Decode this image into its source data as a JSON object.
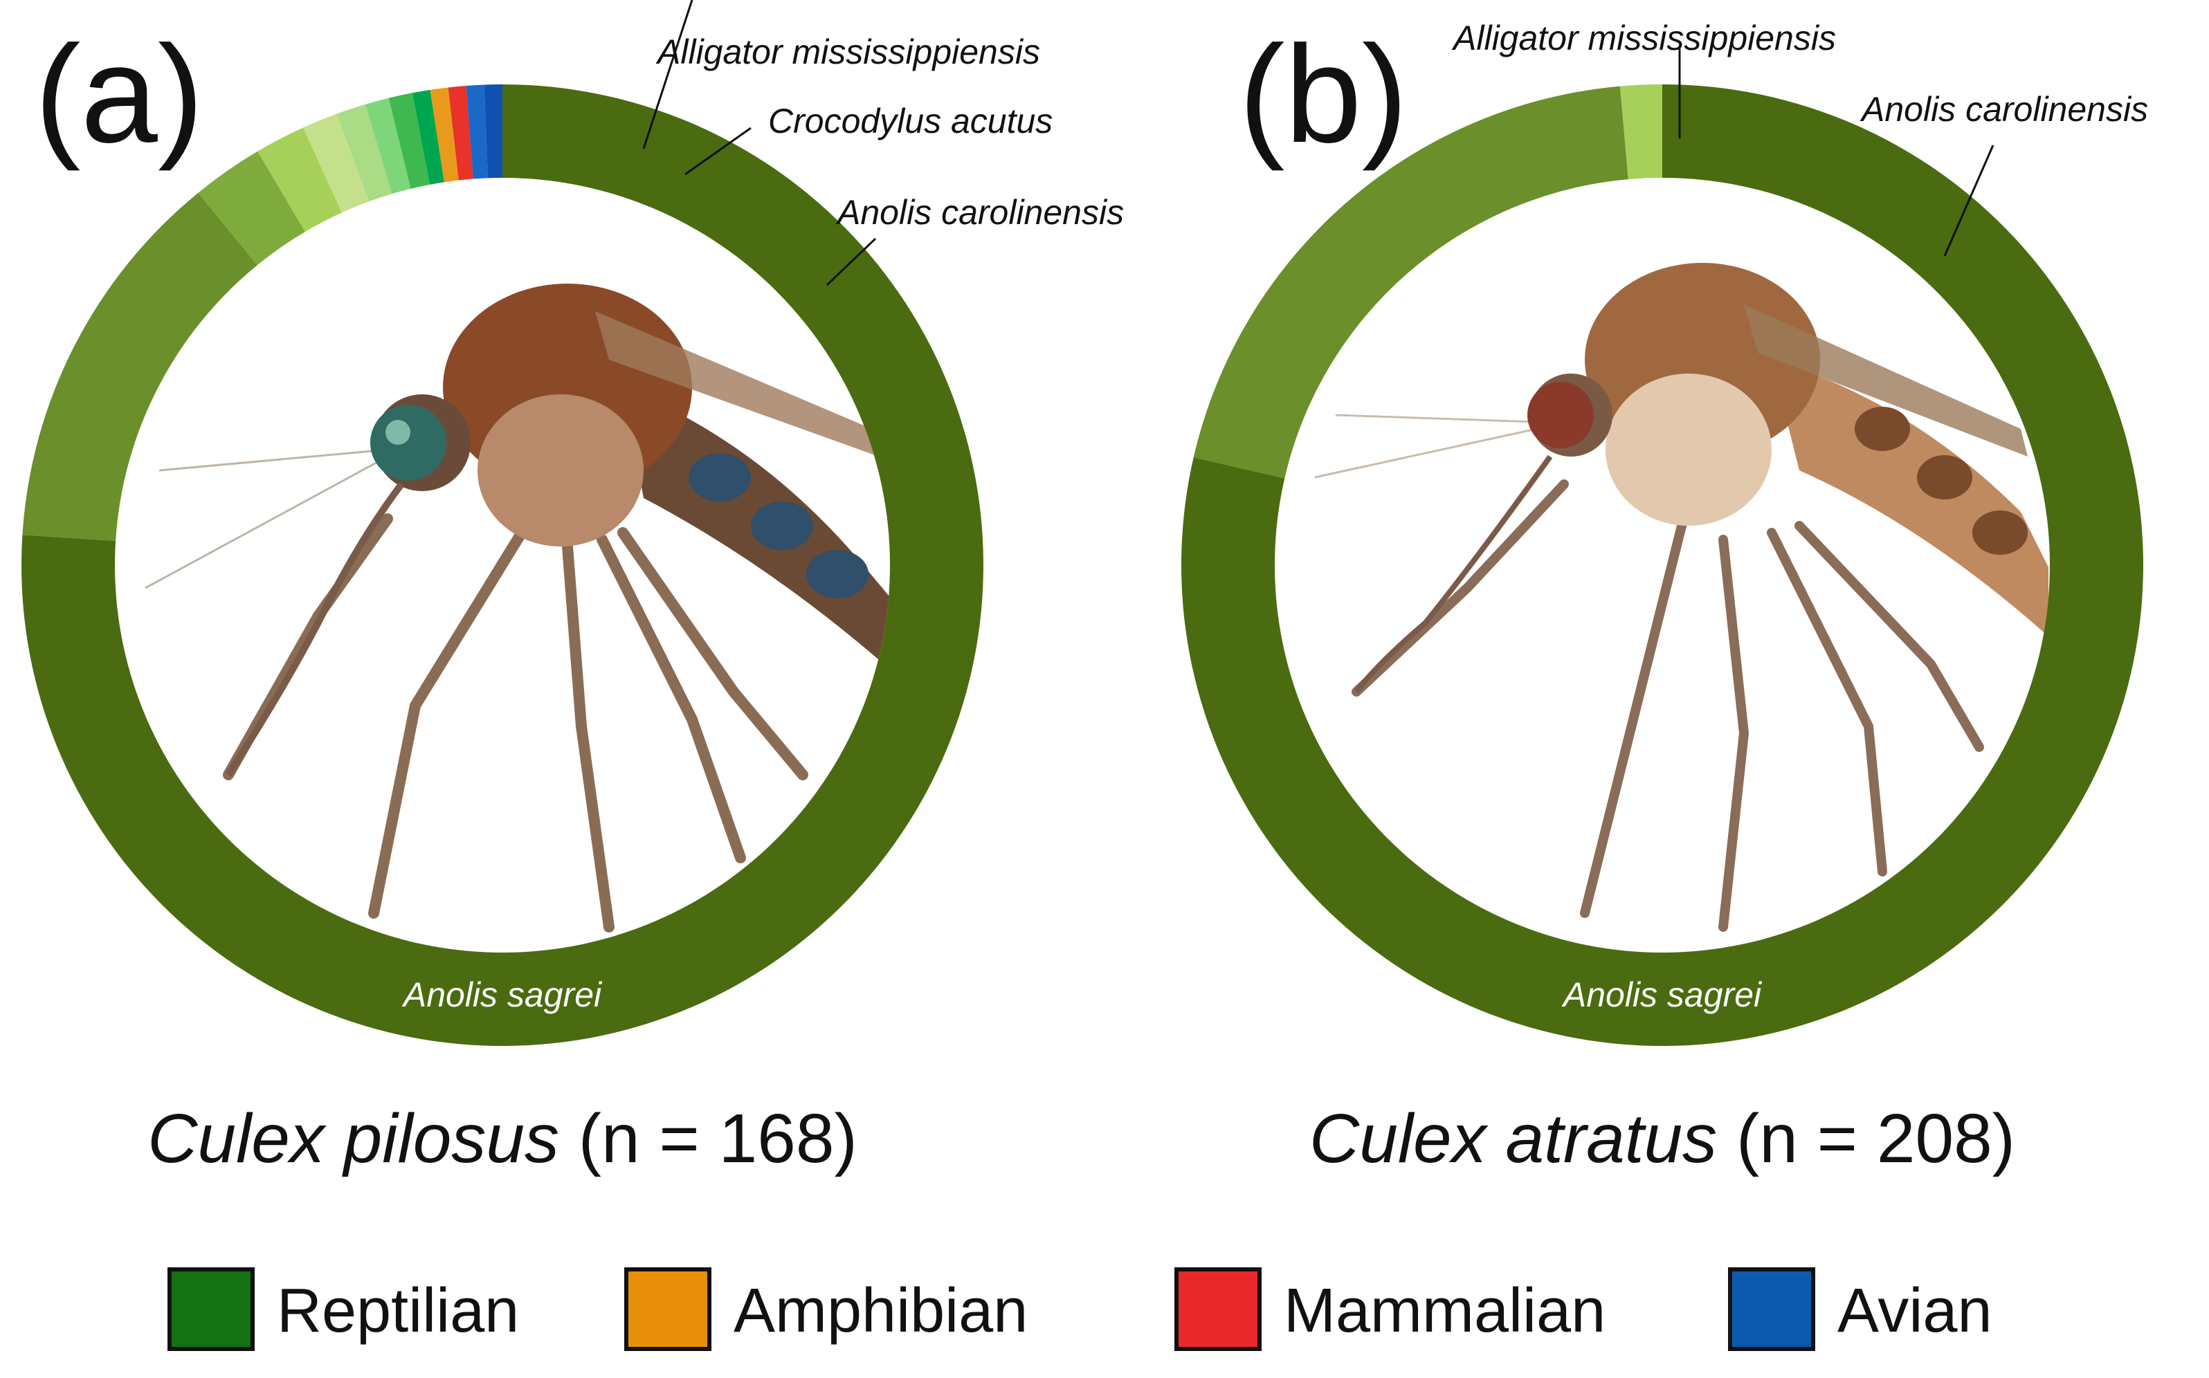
{
  "chart_data": [
    {
      "type": "donut",
      "panel": "(a)",
      "title_italic": "Culex pilosus",
      "title_rest": " (n = 168)",
      "slices": [
        {
          "label": "Anolis sagrei",
          "value": 0.76,
          "color": "#4a6b0f",
          "group": "Reptilian"
        },
        {
          "label": "Anolis carolinensis",
          "value": 0.131,
          "color": "#6b8f2a",
          "group": "Reptilian"
        },
        {
          "label": "Crocodylus acutus",
          "value": 0.024,
          "color": "#7fab3c",
          "group": "Reptilian"
        },
        {
          "label": "Alligator mississippiensis",
          "value": 0.017,
          "color": "#a6d05a",
          "group": "Reptilian"
        },
        {
          "label": "",
          "value": 0.012,
          "color": "#c4e08a",
          "group": "Reptilian"
        },
        {
          "label": "",
          "value": 0.01,
          "color": "#a9dc84",
          "group": "Reptilian"
        },
        {
          "label": "",
          "value": 0.008,
          "color": "#7ed67a",
          "group": "Reptilian"
        },
        {
          "label": "",
          "value": 0.008,
          "color": "#3fb850",
          "group": "Reptilian"
        },
        {
          "label": "",
          "value": 0.006,
          "color": "#00a64f",
          "group": "Reptilian"
        },
        {
          "label": "",
          "value": 0.006,
          "color": "#e89a1a",
          "group": "Amphibian"
        },
        {
          "label": "",
          "value": 0.006,
          "color": "#e8322a",
          "group": "Mammalian"
        },
        {
          "label": "",
          "value": 0.006,
          "color": "#1a68c8",
          "group": "Avian"
        },
        {
          "label": "",
          "value": 0.006,
          "color": "#1050b0",
          "group": "Avian"
        }
      ]
    },
    {
      "type": "donut",
      "panel": "(b)",
      "title_italic": "Culex atratus",
      "title_rest": " (n = 208)",
      "slices": [
        {
          "label": "Anolis sagrei",
          "value": 0.786,
          "color": "#4a6b0f",
          "group": "Reptilian"
        },
        {
          "label": "Anolis carolinensis",
          "value": 0.2,
          "color": "#6b8f2a",
          "group": "Reptilian"
        },
        {
          "label": "Alligator mississippiensis",
          "value": 0.014,
          "color": "#a6d05a",
          "group": "Reptilian"
        }
      ]
    }
  ],
  "legend": [
    {
      "label": "Reptilian",
      "color": "#147214"
    },
    {
      "label": "Amphibian",
      "color": "#e8900a"
    },
    {
      "label": "Mammalian",
      "color": "#e8282a"
    },
    {
      "label": "Avian",
      "color": "#0c5ab0"
    }
  ]
}
